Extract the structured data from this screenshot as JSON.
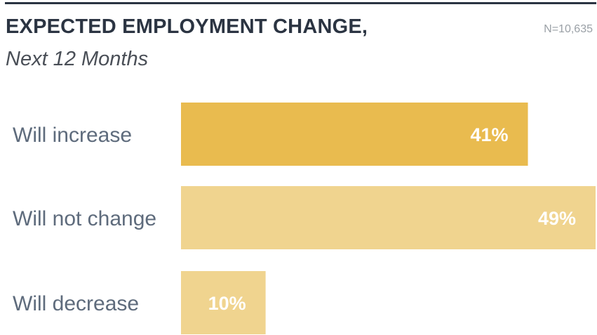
{
  "header": {
    "title": "EXPECTED EMPLOYMENT CHANGE,",
    "subtitle": "Next 12 Months",
    "sample_note": "N=10,635"
  },
  "chart_data": {
    "type": "bar",
    "orientation": "horizontal",
    "title": "EXPECTED EMPLOYMENT CHANGE,",
    "subtitle": "Next 12 Months",
    "categories": [
      "Will increase",
      "Will not change",
      "Will decrease"
    ],
    "values": [
      41,
      49,
      10
    ],
    "value_labels": [
      "41%",
      "49%",
      "10%"
    ],
    "unit": "%",
    "colors": [
      "#e9bb4f",
      "#f0d48f",
      "#f0d48f"
    ],
    "xlim": [
      0,
      49
    ],
    "grid": false,
    "legend": "none"
  }
}
